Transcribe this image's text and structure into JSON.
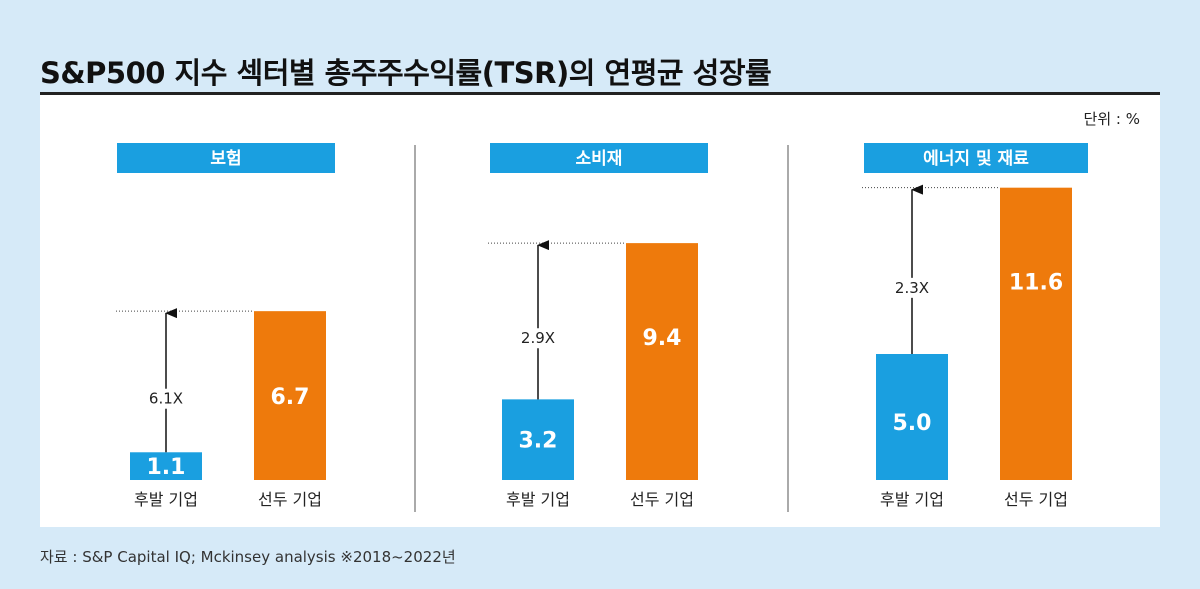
{
  "title": "S&P500 지수 섹터별 총주주수익률(TSR)의 연평균 성장률",
  "unit_label": "단위 : %",
  "source_note": "자료 : S&P Capital IQ; Mckinsey analysis  ※2018~2022년",
  "colors": {
    "lagging": "#1a9fe0",
    "leading": "#ee7a0c",
    "sector_label_bg": "#1a9fe0",
    "background": "#d6eaf8"
  },
  "chart_data": [
    {
      "type": "bar",
      "title": "보험",
      "categories": [
        "후발 기업",
        "선두 기업"
      ],
      "values": [
        1.1,
        6.7
      ],
      "value_labels": [
        "1.1",
        "6.7"
      ],
      "multiplier_label": "6.1X",
      "ylim": [
        0,
        12
      ]
    },
    {
      "type": "bar",
      "title": "소비재",
      "categories": [
        "후발 기업",
        "선두 기업"
      ],
      "values": [
        3.2,
        9.4
      ],
      "value_labels": [
        "3.2",
        "9.4"
      ],
      "multiplier_label": "2.9X",
      "ylim": [
        0,
        12
      ]
    },
    {
      "type": "bar",
      "title": "에너지 및 재료",
      "categories": [
        "후발 기업",
        "선두 기업"
      ],
      "values": [
        5.0,
        11.6
      ],
      "value_labels": [
        "5.0",
        "11.6"
      ],
      "multiplier_label": "2.3X",
      "ylim": [
        0,
        12
      ]
    }
  ]
}
